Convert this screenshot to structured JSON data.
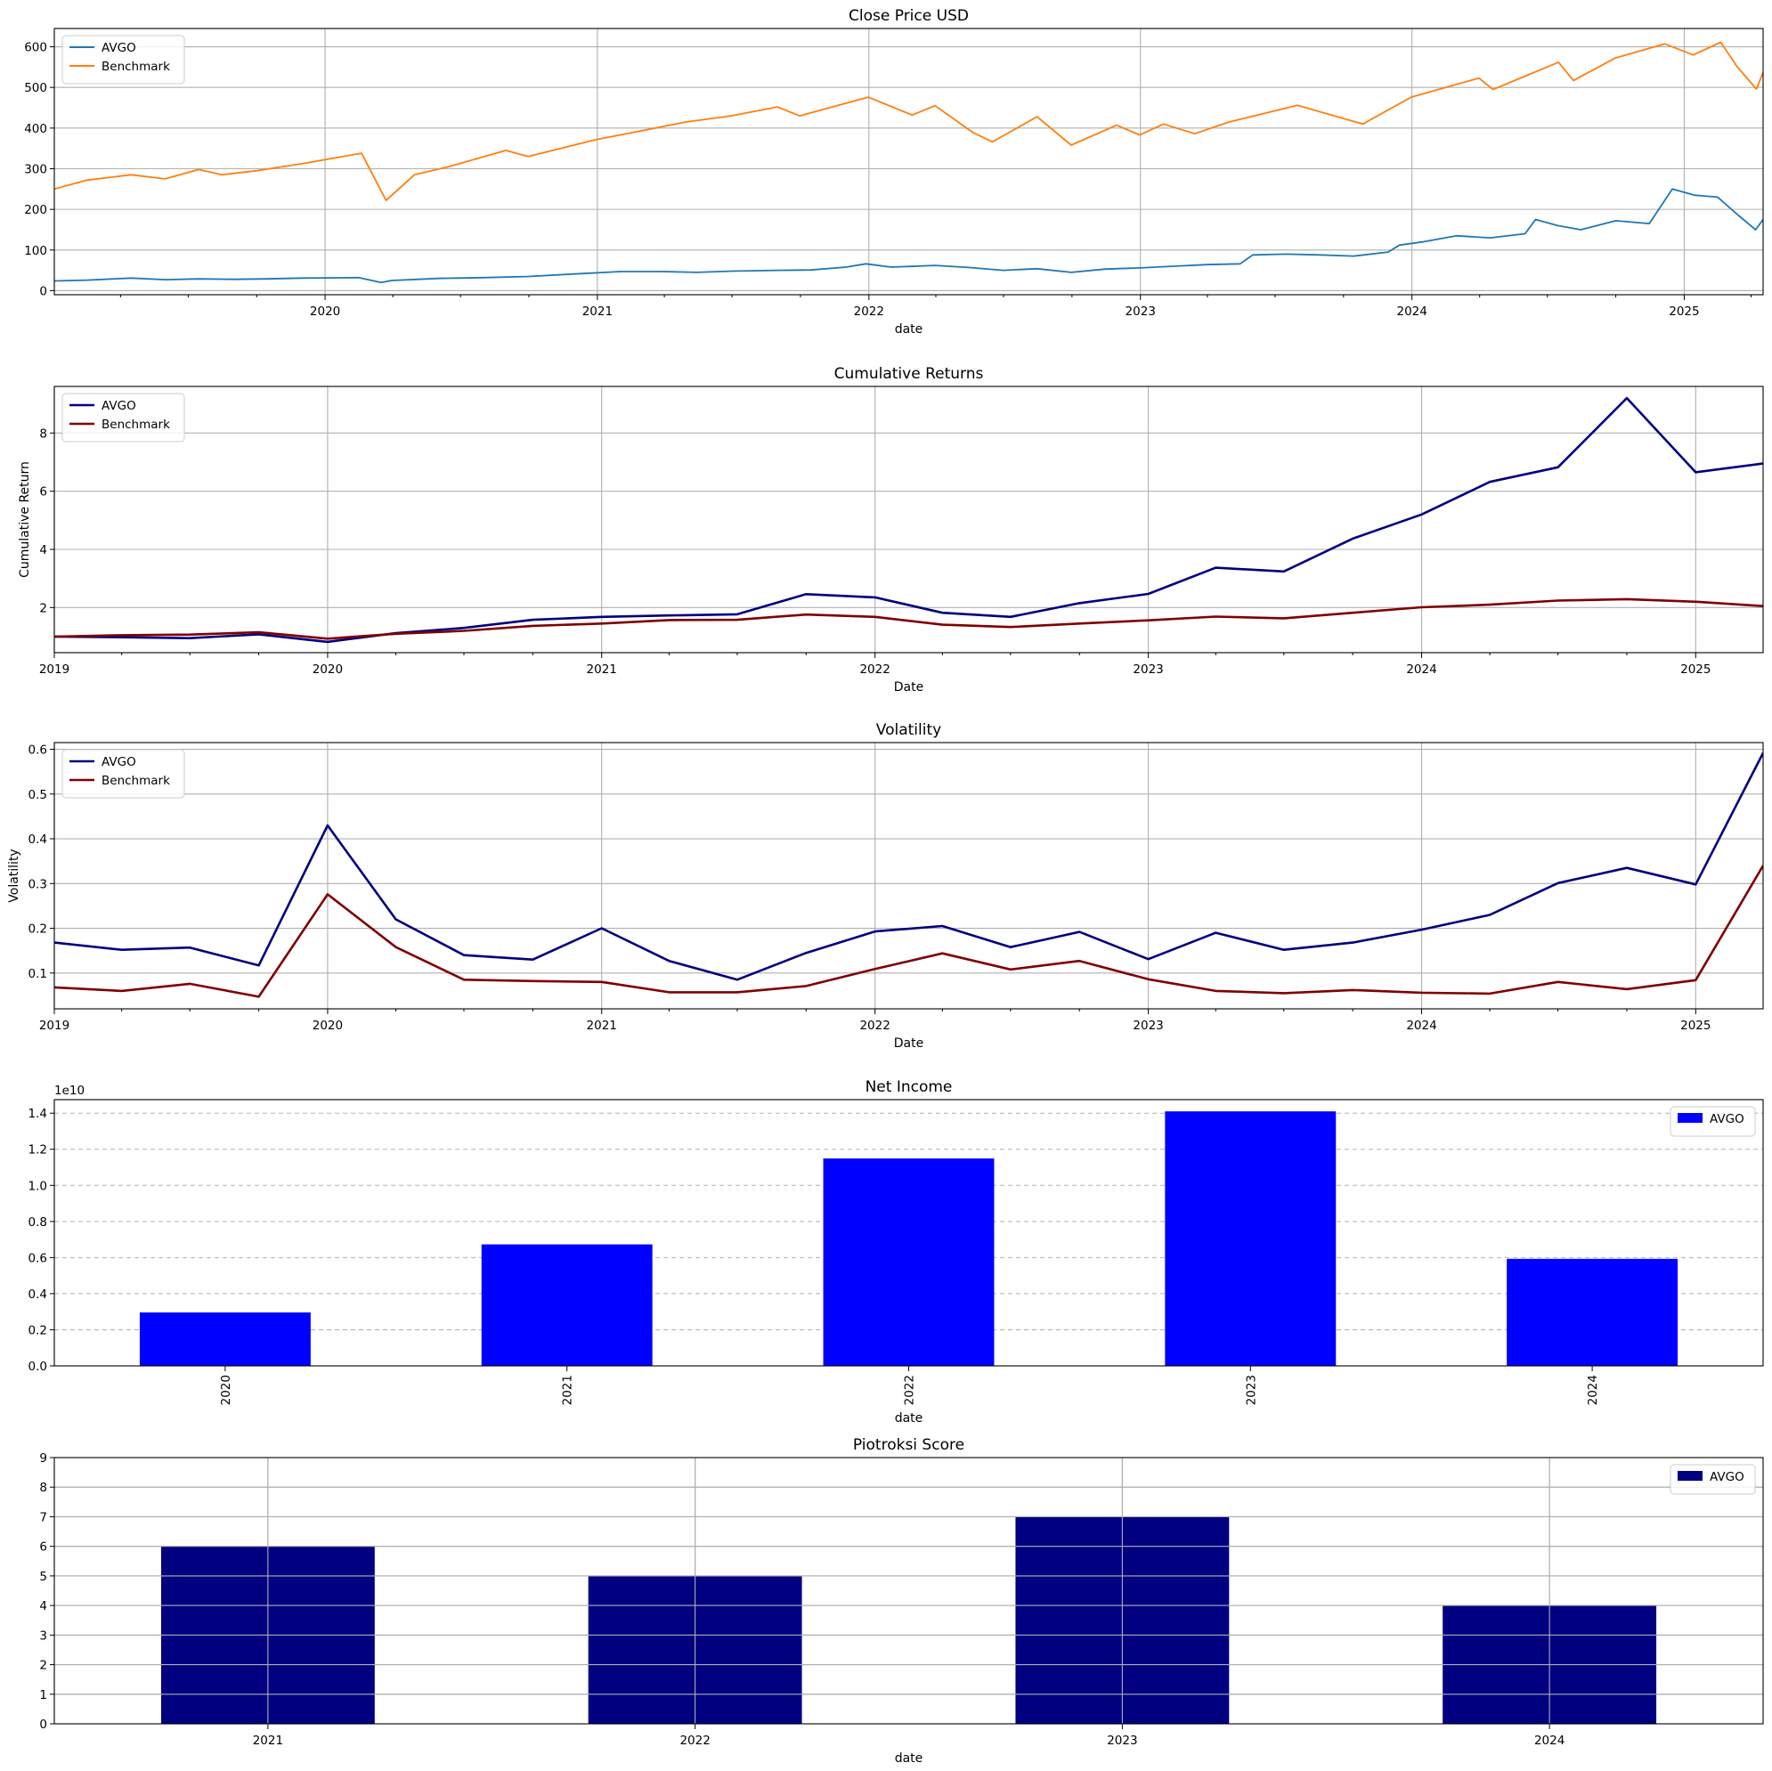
{
  "chart_data": [
    {
      "type": "line",
      "title": "Close Price USD",
      "xlabel": "date",
      "ylabel": "",
      "grid": true,
      "legend_position": "top-left",
      "xlim": [
        "2019-01-02",
        "2025-04-17"
      ],
      "ylim": [
        -10,
        645
      ],
      "x_ticks": [
        "2020",
        "2021",
        "2022",
        "2023",
        "2024",
        "2025"
      ],
      "y_ticks": [
        0,
        100,
        200,
        300,
        400,
        500,
        600
      ],
      "series": [
        {
          "name": "AVGO",
          "color": "#1f77b4",
          "points": [
            [
              "2019-01-02",
              24
            ],
            [
              "2019-02-15",
              26
            ],
            [
              "2019-04-15",
              31
            ],
            [
              "2019-06-01",
              27
            ],
            [
              "2019-07-15",
              29
            ],
            [
              "2019-09-01",
              28
            ],
            [
              "2019-10-15",
              29
            ],
            [
              "2019-12-01",
              31
            ],
            [
              "2020-02-15",
              32
            ],
            [
              "2020-03-16",
              20
            ],
            [
              "2020-03-31",
              25
            ],
            [
              "2020-06-01",
              30
            ],
            [
              "2020-08-01",
              32
            ],
            [
              "2020-10-01",
              35
            ],
            [
              "2020-12-01",
              41
            ],
            [
              "2021-02-01",
              47
            ],
            [
              "2021-04-01",
              47
            ],
            [
              "2021-05-15",
              45
            ],
            [
              "2021-07-01",
              48
            ],
            [
              "2021-09-01",
              50
            ],
            [
              "2021-10-15",
              51
            ],
            [
              "2021-12-01",
              58
            ],
            [
              "2021-12-28",
              66
            ],
            [
              "2022-01-31",
              58
            ],
            [
              "2022-03-31",
              62
            ],
            [
              "2022-05-15",
              57
            ],
            [
              "2022-07-01",
              50
            ],
            [
              "2022-08-15",
              54
            ],
            [
              "2022-09-30",
              45
            ],
            [
              "2022-11-15",
              53
            ],
            [
              "2022-12-31",
              56
            ],
            [
              "2023-02-15",
              60
            ],
            [
              "2023-03-31",
              64
            ],
            [
              "2023-05-15",
              66
            ],
            [
              "2023-06-01",
              88
            ],
            [
              "2023-07-15",
              90
            ],
            [
              "2023-08-31",
              88
            ],
            [
              "2023-10-15",
              85
            ],
            [
              "2023-11-30",
              95
            ],
            [
              "2023-12-15",
              112
            ],
            [
              "2024-01-15",
              120
            ],
            [
              "2024-03-01",
              135
            ],
            [
              "2024-04-15",
              130
            ],
            [
              "2024-06-01",
              140
            ],
            [
              "2024-06-15",
              175
            ],
            [
              "2024-07-15",
              160
            ],
            [
              "2024-08-15",
              150
            ],
            [
              "2024-10-01",
              172
            ],
            [
              "2024-11-15",
              165
            ],
            [
              "2024-12-16",
              250
            ],
            [
              "2025-01-15",
              235
            ],
            [
              "2025-02-15",
              230
            ],
            [
              "2025-03-15",
              185
            ],
            [
              "2025-04-07",
              150
            ],
            [
              "2025-04-17",
              175
            ]
          ]
        },
        {
          "name": "Benchmark",
          "color": "#ff7f0e",
          "points": [
            [
              "2019-01-02",
              250
            ],
            [
              "2019-02-15",
              272
            ],
            [
              "2019-04-15",
              285
            ],
            [
              "2019-05-31",
              275
            ],
            [
              "2019-07-15",
              298
            ],
            [
              "2019-08-15",
              285
            ],
            [
              "2019-09-30",
              295
            ],
            [
              "2019-11-30",
              312
            ],
            [
              "2020-02-19",
              338
            ],
            [
              "2020-03-23",
              222
            ],
            [
              "2020-04-30",
              285
            ],
            [
              "2020-06-15",
              305
            ],
            [
              "2020-08-31",
              345
            ],
            [
              "2020-09-30",
              330
            ],
            [
              "2020-12-31",
              372
            ],
            [
              "2021-02-15",
              388
            ],
            [
              "2021-04-30",
              415
            ],
            [
              "2021-06-30",
              430
            ],
            [
              "2021-08-31",
              452
            ],
            [
              "2021-09-30",
              430
            ],
            [
              "2021-12-31",
              476
            ],
            [
              "2022-02-28",
              432
            ],
            [
              "2022-03-31",
              455
            ],
            [
              "2022-05-20",
              390
            ],
            [
              "2022-06-16",
              366
            ],
            [
              "2022-08-15",
              428
            ],
            [
              "2022-09-30",
              358
            ],
            [
              "2022-11-30",
              407
            ],
            [
              "2022-12-31",
              383
            ],
            [
              "2023-02-01",
              410
            ],
            [
              "2023-03-15",
              386
            ],
            [
              "2023-04-30",
              415
            ],
            [
              "2023-07-31",
              456
            ],
            [
              "2023-10-27",
              410
            ],
            [
              "2023-12-31",
              476
            ],
            [
              "2024-03-31",
              523
            ],
            [
              "2024-04-19",
              495
            ],
            [
              "2024-07-16",
              562
            ],
            [
              "2024-08-05",
              517
            ],
            [
              "2024-09-30",
              572
            ],
            [
              "2024-12-06",
              607
            ],
            [
              "2025-01-13",
              580
            ],
            [
              "2025-02-19",
              611
            ],
            [
              "2025-03-13",
              551
            ],
            [
              "2025-04-08",
              496
            ],
            [
              "2025-04-17",
              537
            ]
          ]
        }
      ]
    },
    {
      "type": "line",
      "title": "Cumulative Returns",
      "xlabel": "Date",
      "ylabel": "Cumulative Return",
      "grid": true,
      "legend_position": "top-left",
      "xlim": [
        "2019-01-01",
        "2025-04-01"
      ],
      "ylim": [
        0.45,
        9.6
      ],
      "x_ticks": [
        "2019",
        "2020",
        "2021",
        "2022",
        "2023",
        "2024",
        "2025"
      ],
      "y_ticks": [
        2,
        4,
        6,
        8
      ],
      "series": [
        {
          "name": "AVGO",
          "color": "#000080",
          "points": [
            [
              "2019-01-01",
              1.0
            ],
            [
              "2019-04-01",
              0.98
            ],
            [
              "2019-07-01",
              0.95
            ],
            [
              "2019-10-01",
              1.08
            ],
            [
              "2020-01-01",
              0.82
            ],
            [
              "2020-04-01",
              1.12
            ],
            [
              "2020-07-01",
              1.3
            ],
            [
              "2020-10-01",
              1.58
            ],
            [
              "2021-01-01",
              1.68
            ],
            [
              "2021-04-01",
              1.73
            ],
            [
              "2021-07-01",
              1.77
            ],
            [
              "2021-10-01",
              2.46
            ],
            [
              "2022-01-01",
              2.35
            ],
            [
              "2022-04-01",
              1.82
            ],
            [
              "2022-07-01",
              1.68
            ],
            [
              "2022-10-01",
              2.15
            ],
            [
              "2023-01-01",
              2.47
            ],
            [
              "2023-04-01",
              3.37
            ],
            [
              "2023-07-01",
              3.24
            ],
            [
              "2023-10-01",
              4.37
            ],
            [
              "2024-01-01",
              5.2
            ],
            [
              "2024-04-01",
              6.32
            ],
            [
              "2024-07-01",
              6.82
            ],
            [
              "2024-10-01",
              9.2
            ],
            [
              "2025-01-01",
              6.65
            ],
            [
              "2025-04-01",
              6.95
            ]
          ]
        },
        {
          "name": "Benchmark",
          "color": "#800000",
          "points": [
            [
              "2019-01-01",
              1.0
            ],
            [
              "2019-04-01",
              1.05
            ],
            [
              "2019-07-01",
              1.07
            ],
            [
              "2019-10-01",
              1.15
            ],
            [
              "2020-01-01",
              0.93
            ],
            [
              "2020-04-01",
              1.1
            ],
            [
              "2020-07-01",
              1.2
            ],
            [
              "2020-10-01",
              1.37
            ],
            [
              "2021-01-01",
              1.45
            ],
            [
              "2021-04-01",
              1.57
            ],
            [
              "2021-07-01",
              1.58
            ],
            [
              "2021-10-01",
              1.76
            ],
            [
              "2022-01-01",
              1.68
            ],
            [
              "2022-04-01",
              1.41
            ],
            [
              "2022-07-01",
              1.33
            ],
            [
              "2022-10-01",
              1.45
            ],
            [
              "2023-01-01",
              1.56
            ],
            [
              "2023-04-01",
              1.69
            ],
            [
              "2023-07-01",
              1.63
            ],
            [
              "2023-10-01",
              1.82
            ],
            [
              "2024-01-01",
              2.01
            ],
            [
              "2024-04-01",
              2.1
            ],
            [
              "2024-07-01",
              2.24
            ],
            [
              "2024-10-01",
              2.29
            ],
            [
              "2025-01-01",
              2.2
            ],
            [
              "2025-04-01",
              2.05
            ]
          ]
        }
      ]
    },
    {
      "type": "line",
      "title": "Volatility",
      "xlabel": "Date",
      "ylabel": "Volatility",
      "grid": true,
      "legend_position": "top-left",
      "xlim": [
        "2019-01-01",
        "2025-04-01"
      ],
      "ylim": [
        0.02,
        0.615
      ],
      "x_ticks": [
        "2019",
        "2020",
        "2021",
        "2022",
        "2023",
        "2024",
        "2025"
      ],
      "y_ticks": [
        0.1,
        0.2,
        0.3,
        0.4,
        0.5,
        0.6
      ],
      "series": [
        {
          "name": "AVGO",
          "color": "#000080",
          "points": [
            [
              "2019-01-01",
              0.168
            ],
            [
              "2019-04-01",
              0.152
            ],
            [
              "2019-07-01",
              0.157
            ],
            [
              "2019-10-01",
              0.117
            ],
            [
              "2020-01-01",
              0.43
            ],
            [
              "2020-04-01",
              0.22
            ],
            [
              "2020-07-01",
              0.14
            ],
            [
              "2020-10-01",
              0.13
            ],
            [
              "2021-01-01",
              0.2
            ],
            [
              "2021-04-01",
              0.127
            ],
            [
              "2021-07-01",
              0.085
            ],
            [
              "2021-10-01",
              0.145
            ],
            [
              "2022-01-01",
              0.193
            ],
            [
              "2022-04-01",
              0.205
            ],
            [
              "2022-07-01",
              0.158
            ],
            [
              "2022-10-01",
              0.192
            ],
            [
              "2023-01-01",
              0.131
            ],
            [
              "2023-04-01",
              0.19
            ],
            [
              "2023-07-01",
              0.152
            ],
            [
              "2023-10-01",
              0.168
            ],
            [
              "2024-01-01",
              0.197
            ],
            [
              "2024-04-01",
              0.23
            ],
            [
              "2024-07-01",
              0.301
            ],
            [
              "2024-10-01",
              0.335
            ],
            [
              "2025-01-01",
              0.298
            ],
            [
              "2025-04-01",
              0.592
            ]
          ]
        },
        {
          "name": "Benchmark",
          "color": "#800000",
          "points": [
            [
              "2019-01-01",
              0.068
            ],
            [
              "2019-04-01",
              0.06
            ],
            [
              "2019-07-01",
              0.076
            ],
            [
              "2019-10-01",
              0.047
            ],
            [
              "2020-01-01",
              0.276
            ],
            [
              "2020-04-01",
              0.158
            ],
            [
              "2020-07-01",
              0.085
            ],
            [
              "2020-10-01",
              0.082
            ],
            [
              "2021-01-01",
              0.08
            ],
            [
              "2021-04-01",
              0.057
            ],
            [
              "2021-07-01",
              0.057
            ],
            [
              "2021-10-01",
              0.071
            ],
            [
              "2022-01-01",
              0.109
            ],
            [
              "2022-04-01",
              0.144
            ],
            [
              "2022-07-01",
              0.108
            ],
            [
              "2022-10-01",
              0.127
            ],
            [
              "2023-01-01",
              0.086
            ],
            [
              "2023-04-01",
              0.06
            ],
            [
              "2023-07-01",
              0.055
            ],
            [
              "2023-10-01",
              0.062
            ],
            [
              "2024-01-01",
              0.056
            ],
            [
              "2024-04-01",
              0.054
            ],
            [
              "2024-07-01",
              0.08
            ],
            [
              "2024-10-01",
              0.064
            ],
            [
              "2025-01-01",
              0.084
            ],
            [
              "2025-04-01",
              0.34
            ]
          ]
        }
      ]
    },
    {
      "type": "bar",
      "title": "Net Income",
      "xlabel": "date",
      "ylabel": "",
      "y_offset_label": "1e10",
      "grid": "y-dashed",
      "legend_position": "top-right",
      "tick_rotation": -90,
      "categories": [
        "2020",
        "2021",
        "2022",
        "2023",
        "2024"
      ],
      "ylim": [
        0,
        1.475
      ],
      "y_ticks": [
        "0.0",
        "0.2",
        "0.4",
        "0.6",
        "0.8",
        "1.0",
        "1.2",
        "1.4"
      ],
      "series": [
        {
          "name": "AVGO",
          "color": "#0000ff",
          "values": [
            0.296,
            0.673,
            1.149,
            1.41,
            0.593
          ]
        }
      ]
    },
    {
      "type": "bar",
      "title": "Piotroksi Score",
      "xlabel": "date",
      "ylabel": "",
      "grid": true,
      "legend_position": "top-right",
      "tick_rotation": 0,
      "categories": [
        "2021",
        "2022",
        "2023",
        "2024"
      ],
      "ylim": [
        0,
        9
      ],
      "y_ticks": [
        "0",
        "1",
        "2",
        "3",
        "4",
        "5",
        "6",
        "7",
        "8",
        "9"
      ],
      "series": [
        {
          "name": "AVGO",
          "color": "#000080",
          "values": [
            6,
            5,
            7,
            4
          ]
        }
      ]
    }
  ]
}
